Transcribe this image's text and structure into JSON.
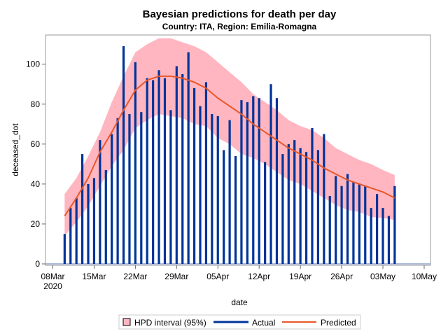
{
  "chart_data": {
    "type": "bar+line+band",
    "title": "Bayesian predictions for death per day",
    "subtitle": "Country: ITA, Region: Emilia-Romagna",
    "xlabel": "date",
    "ylabel": "deceased_dot",
    "ylim": [
      0,
      113
    ],
    "yticks": [
      0,
      20,
      40,
      60,
      80,
      100
    ],
    "xlim": [
      "2020-03-08",
      "2020-05-10"
    ],
    "xticks": [
      {
        "date": "2020-03-08",
        "label": "08Mar",
        "sublabel": "2020"
      },
      {
        "date": "2020-03-15",
        "label": "15Mar"
      },
      {
        "date": "2020-03-22",
        "label": "22Mar"
      },
      {
        "date": "2020-03-29",
        "label": "29Mar"
      },
      {
        "date": "2020-04-05",
        "label": "05Apr"
      },
      {
        "date": "2020-04-12",
        "label": "12Apr"
      },
      {
        "date": "2020-04-19",
        "label": "19Apr"
      },
      {
        "date": "2020-04-26",
        "label": "26Apr"
      },
      {
        "date": "2020-05-03",
        "label": "03May"
      },
      {
        "date": "2020-05-10",
        "label": "10May"
      }
    ],
    "grid": false,
    "legend_position": "bottom",
    "legend": [
      "HPD interval (95%)",
      "Actual",
      "Predicted"
    ],
    "colors": {
      "band": "#ffb6c1",
      "actual": "#003399",
      "predicted": "#e8582a"
    },
    "actual": {
      "name": "Actual",
      "x": [
        "2020-03-10",
        "2020-03-11",
        "2020-03-12",
        "2020-03-13",
        "2020-03-14",
        "2020-03-15",
        "2020-03-16",
        "2020-03-17",
        "2020-03-18",
        "2020-03-19",
        "2020-03-20",
        "2020-03-21",
        "2020-03-22",
        "2020-03-23",
        "2020-03-24",
        "2020-03-25",
        "2020-03-26",
        "2020-03-27",
        "2020-03-28",
        "2020-03-29",
        "2020-03-30",
        "2020-03-31",
        "2020-04-01",
        "2020-04-02",
        "2020-04-03",
        "2020-04-04",
        "2020-04-05",
        "2020-04-06",
        "2020-04-07",
        "2020-04-08",
        "2020-04-09",
        "2020-04-10",
        "2020-04-11",
        "2020-04-12",
        "2020-04-13",
        "2020-04-14",
        "2020-04-15",
        "2020-04-16",
        "2020-04-17",
        "2020-04-18",
        "2020-04-19",
        "2020-04-20",
        "2020-04-21",
        "2020-04-22",
        "2020-04-23",
        "2020-04-24",
        "2020-04-25",
        "2020-04-26",
        "2020-04-27",
        "2020-04-28",
        "2020-04-29",
        "2020-04-30",
        "2020-05-01",
        "2020-05-02",
        "2020-05-03",
        "2020-05-04",
        "2020-05-05"
      ],
      "values": [
        15,
        28,
        33,
        55,
        40,
        43,
        62,
        47,
        65,
        73,
        109,
        75,
        101,
        76,
        93,
        92,
        97,
        93,
        77,
        99,
        95,
        106,
        88,
        79,
        91,
        75,
        74,
        57,
        72,
        54,
        82,
        81,
        84,
        83,
        51,
        90,
        83,
        55,
        60,
        62,
        58,
        56,
        68,
        57,
        65,
        34,
        44,
        39,
        45,
        41,
        40,
        39,
        28,
        35,
        28,
        24,
        39
      ]
    },
    "model": {
      "x": [
        "2020-03-10",
        "2020-03-12",
        "2020-03-14",
        "2020-03-16",
        "2020-03-18",
        "2020-03-20",
        "2020-03-22",
        "2020-03-24",
        "2020-03-26",
        "2020-03-28",
        "2020-03-30",
        "2020-04-01",
        "2020-04-03",
        "2020-04-05",
        "2020-04-07",
        "2020-04-09",
        "2020-04-11",
        "2020-04-13",
        "2020-04-15",
        "2020-04-17",
        "2020-04-19",
        "2020-04-21",
        "2020-04-23",
        "2020-04-25",
        "2020-04-27",
        "2020-04-29",
        "2020-05-01",
        "2020-05-03",
        "2020-05-05"
      ],
      "predicted": [
        24,
        33,
        43,
        56,
        66,
        77,
        87,
        92,
        94,
        94,
        93,
        91,
        88,
        83,
        79,
        75,
        70,
        66,
        62,
        58,
        55,
        52,
        48,
        45,
        42,
        40,
        38,
        36,
        33
      ],
      "hpd_upper": [
        35,
        43,
        54,
        66,
        81,
        94,
        106,
        110,
        113,
        113,
        111,
        109,
        106,
        101,
        96,
        91,
        85,
        81,
        77,
        72,
        69,
        67,
        63,
        58,
        55,
        52,
        50,
        47,
        44.5
      ],
      "hpd_lower": [
        14,
        21,
        29,
        39,
        49,
        57,
        68,
        72,
        75,
        74,
        73,
        70,
        69,
        63,
        60,
        55,
        53,
        50,
        46,
        42,
        40,
        36.5,
        33,
        29.5,
        27,
        26,
        23.5,
        23,
        22
      ]
    }
  }
}
